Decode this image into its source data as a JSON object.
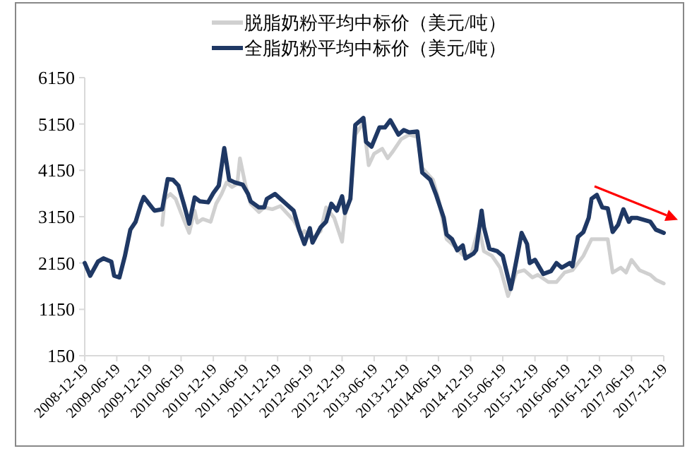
{
  "chart_data": {
    "type": "line",
    "legend": "top",
    "grid": false,
    "marker": "none",
    "line_style": "solid",
    "xlim": [
      "2008-12-19",
      "2017-12-19"
    ],
    "xticks": [
      "2008-12-19",
      "2009-06-19",
      "2009-12-19",
      "2010-06-19",
      "2010-12-19",
      "2011-06-19",
      "2011-12-19",
      "2012-06-19",
      "2012-12-19",
      "2013-06-19",
      "2013-12-19",
      "2014-06-19",
      "2014-12-19",
      "2015-06-19",
      "2015-12-19",
      "2016-06-19",
      "2016-12-19",
      "2017-06-19",
      "2017-12-19"
    ],
    "ylim": [
      150,
      6150
    ],
    "yticks": [
      150,
      1150,
      2150,
      3150,
      4150,
      5150,
      6150
    ],
    "series": [
      {
        "name": "脱脂奶粉平均中标价（美元/吨）",
        "color": "#d0d0d0",
        "x": [
          "2010-03-04",
          "2010-03-19",
          "2010-04-19",
          "2010-05-19",
          "2010-06-19",
          "2010-08-04",
          "2010-09-04",
          "2010-09-19",
          "2010-10-19",
          "2010-12-04",
          "2011-01-04",
          "2011-02-04",
          "2011-03-04",
          "2011-04-04",
          "2011-05-04",
          "2011-05-19",
          "2011-06-19",
          "2011-07-19",
          "2011-09-04",
          "2011-10-04",
          "2011-11-19",
          "2012-01-04",
          "2012-02-04",
          "2012-03-19",
          "2012-05-04",
          "2012-05-19",
          "2012-07-04",
          "2012-08-19",
          "2012-09-19",
          "2012-11-04",
          "2012-12-19",
          "2013-01-04",
          "2013-02-04",
          "2013-03-04",
          "2013-04-19",
          "2013-05-19",
          "2013-06-19",
          "2013-08-04",
          "2013-09-04",
          "2013-10-04",
          "2013-11-19",
          "2014-01-04",
          "2014-02-19",
          "2014-03-19",
          "2014-05-19",
          "2014-06-19",
          "2014-08-04",
          "2014-09-19",
          "2014-11-04",
          "2014-12-19",
          "2015-02-04",
          "2015-03-04",
          "2015-04-19",
          "2015-06-04",
          "2015-07-19",
          "2015-09-04",
          "2015-10-19",
          "2015-12-04",
          "2016-01-04",
          "2016-03-04",
          "2016-04-19",
          "2016-06-04",
          "2016-07-19",
          "2016-09-19",
          "2016-11-04",
          "2016-12-19",
          "2017-02-04",
          "2017-03-04",
          "2017-04-19",
          "2017-05-19",
          "2017-06-19",
          "2017-08-04",
          "2017-10-04",
          "2017-11-04",
          "2017-12-19"
        ],
        "values": [
          2970,
          3535,
          3640,
          3535,
          3230,
          2800,
          3280,
          3020,
          3100,
          3040,
          3430,
          3640,
          3890,
          3790,
          3860,
          4410,
          3840,
          3430,
          3250,
          3350,
          3310,
          3380,
          3250,
          3070,
          2765,
          2840,
          2665,
          2840,
          3350,
          3125,
          2610,
          3180,
          3535,
          4920,
          5180,
          4260,
          4510,
          4615,
          4410,
          4560,
          4820,
          4920,
          4870,
          4200,
          3945,
          3535,
          2665,
          2510,
          2325,
          2305,
          2920,
          2405,
          2305,
          2050,
          1435,
          1945,
          1995,
          1840,
          1895,
          1740,
          1740,
          1945,
          1995,
          2305,
          2665,
          2665,
          2665,
          1945,
          2050,
          1945,
          2220,
          1995,
          1895,
          1790,
          1710
        ]
      },
      {
        "name": "全脂奶粉平均中标价（美元/吨）",
        "color": "#1f3864",
        "x": [
          "2008-12-19",
          "2009-01-19",
          "2009-03-04",
          "2009-04-04",
          "2009-05-19",
          "2009-06-04",
          "2009-07-04",
          "2009-08-04",
          "2009-09-04",
          "2009-10-04",
          "2009-11-04",
          "2009-11-19",
          "2010-01-04",
          "2010-01-19",
          "2010-03-04",
          "2010-04-04",
          "2010-05-04",
          "2010-06-04",
          "2010-07-04",
          "2010-08-04",
          "2010-09-04",
          "2010-10-04",
          "2010-11-19",
          "2010-12-19",
          "2011-01-19",
          "2011-02-19",
          "2011-03-19",
          "2011-04-19",
          "2011-06-04",
          "2011-07-04",
          "2011-07-19",
          "2011-09-04",
          "2011-10-04",
          "2011-10-19",
          "2011-12-04",
          "2012-01-04",
          "2012-02-04",
          "2012-03-19",
          "2012-04-19",
          "2012-05-19",
          "2012-06-19",
          "2012-07-04",
          "2012-08-19",
          "2012-09-19",
          "2012-10-19",
          "2012-11-19",
          "2012-12-19",
          "2013-01-04",
          "2013-02-04",
          "2013-03-04",
          "2013-04-19",
          "2013-05-04",
          "2013-06-04",
          "2013-07-19",
          "2013-08-19",
          "2013-09-19",
          "2013-11-04",
          "2013-12-04",
          "2014-01-04",
          "2014-02-19",
          "2014-03-19",
          "2014-05-04",
          "2014-06-04",
          "2014-07-19",
          "2014-08-04",
          "2014-09-04",
          "2014-10-04",
          "2014-11-04",
          "2014-11-19",
          "2015-01-04",
          "2015-01-19",
          "2015-02-19",
          "2015-03-04",
          "2015-04-04",
          "2015-05-19",
          "2015-06-19",
          "2015-08-04",
          "2015-09-04",
          "2015-10-04",
          "2015-11-04",
          "2015-11-19",
          "2015-12-19",
          "2016-02-04",
          "2016-03-19",
          "2016-04-19",
          "2016-05-19",
          "2016-07-04",
          "2016-07-19",
          "2016-08-19",
          "2016-09-19",
          "2016-10-19",
          "2016-11-04",
          "2016-12-04",
          "2017-01-04",
          "2017-02-04",
          "2017-03-04",
          "2017-04-04",
          "2017-05-04",
          "2017-06-04",
          "2017-06-19",
          "2017-07-19",
          "2017-10-04",
          "2017-11-04",
          "2017-12-19"
        ],
        "values": [
          2150,
          1875,
          2180,
          2250,
          2180,
          1875,
          1840,
          2300,
          2870,
          3040,
          3430,
          3575,
          3350,
          3280,
          3310,
          3960,
          3945,
          3820,
          3430,
          3000,
          3565,
          3480,
          3460,
          3660,
          3820,
          4630,
          3945,
          3890,
          3840,
          3640,
          3480,
          3350,
          3350,
          3535,
          3640,
          3535,
          3430,
          3280,
          2870,
          2560,
          2900,
          2590,
          2920,
          3040,
          3430,
          3280,
          3590,
          3230,
          3535,
          5130,
          5280,
          4765,
          4660,
          5075,
          5075,
          5230,
          4920,
          5020,
          4970,
          4990,
          4100,
          3945,
          3640,
          3125,
          2765,
          2665,
          2425,
          2530,
          2250,
          2355,
          2430,
          3280,
          2920,
          2460,
          2405,
          2305,
          1590,
          2200,
          2800,
          2560,
          2150,
          2220,
          1915,
          1975,
          2150,
          2050,
          2150,
          2080,
          2715,
          2820,
          3125,
          3535,
          3620,
          3350,
          3330,
          2820,
          2975,
          3310,
          3040,
          3125,
          3125,
          3040,
          2870,
          2800
        ]
      }
    ]
  }
}
